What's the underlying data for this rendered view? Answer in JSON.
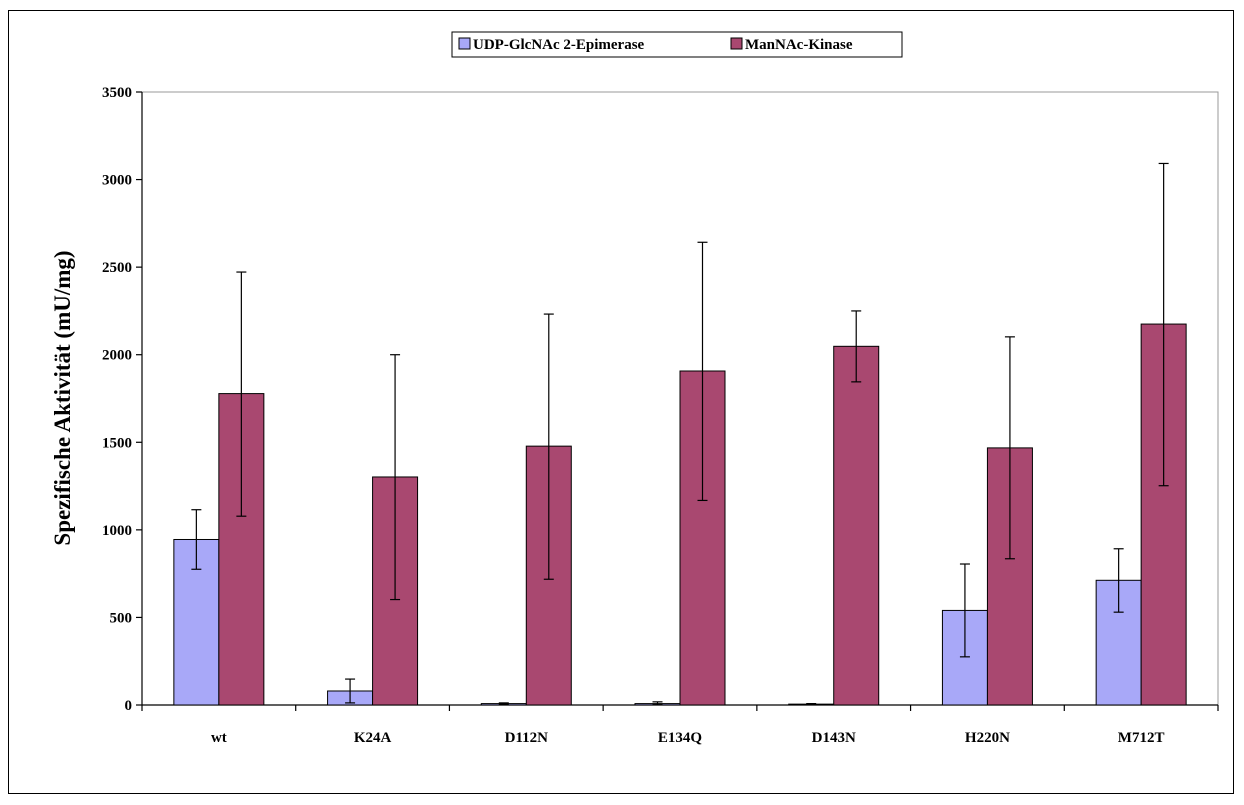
{
  "chart_data": {
    "type": "bar",
    "title": "",
    "xlabel": "",
    "ylabel": "Spezifische Aktivität (mU/mg)",
    "ylim": [
      0,
      3500
    ],
    "yticks": [
      0,
      500,
      1000,
      1500,
      2000,
      2500,
      3000,
      3500
    ],
    "categories": [
      "wt",
      "K24A",
      "D112N",
      "E134Q",
      "D143N",
      "H220N",
      "M712T"
    ],
    "grid": false,
    "legend_position": "top-center",
    "series": [
      {
        "name": "UDP-GlcNAc 2-Epimerase",
        "color": "#a8a8f8",
        "values": [
          945,
          80,
          8,
          8,
          5,
          540,
          712
        ],
        "error_low": [
          775,
          12,
          4,
          2,
          2,
          275,
          530
        ],
        "error_high": [
          1115,
          148,
          12,
          18,
          8,
          805,
          892
        ]
      },
      {
        "name": "ManNAc-Kinase",
        "color": "#a94870",
        "values": [
          1778,
          1302,
          1478,
          1907,
          2048,
          1468,
          2175
        ],
        "error_low": [
          1078,
          602,
          718,
          1168,
          1845,
          835,
          1252
        ],
        "error_high": [
          2472,
          2000,
          2232,
          2642,
          2250,
          2102,
          3092
        ]
      }
    ]
  }
}
